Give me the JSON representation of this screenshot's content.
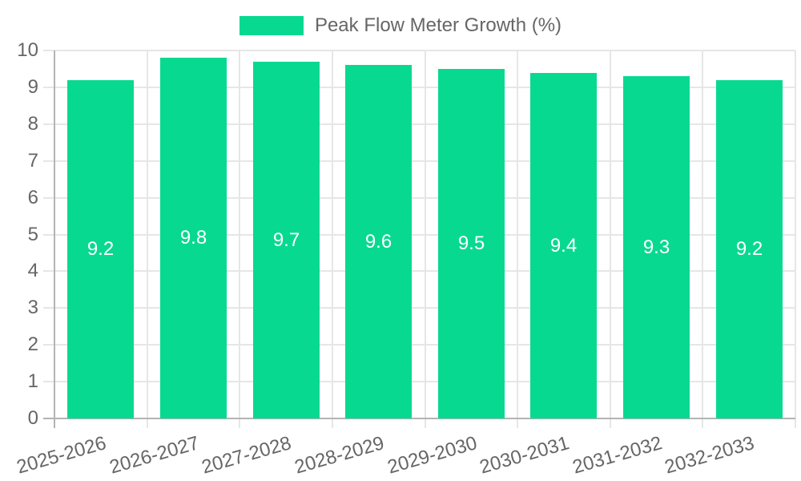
{
  "chart_data": {
    "type": "bar",
    "title": "Peak Flow Meter Growth (%)",
    "categories": [
      "2025-2026",
      "2026-2027",
      "2027-2028",
      "2028-2029",
      "2029-2030",
      "2030-2031",
      "2031-2032",
      "2032-2033"
    ],
    "values": [
      9.2,
      9.8,
      9.7,
      9.6,
      9.5,
      9.4,
      9.3,
      9.2
    ],
    "value_labels": [
      "9.2",
      "9.8",
      "9.7",
      "9.6",
      "9.5",
      "9.4",
      "9.3",
      "9.2"
    ],
    "ylim": [
      0,
      10
    ],
    "ytick_step": 1,
    "ytick_labels": [
      "0",
      "1",
      "2",
      "3",
      "4",
      "5",
      "6",
      "7",
      "8",
      "9",
      "10"
    ],
    "xlabel": "",
    "ylabel": "",
    "grid": true,
    "legend_position": "top",
    "x_label_rotation_deg": -16,
    "colors": {
      "bar": "#08d991",
      "value_label": "#ffffff",
      "axis_text": "#666666",
      "gridline": "#e6e6e6",
      "axis_line": "#b4b4b4",
      "background": "#ffffff"
    }
  }
}
